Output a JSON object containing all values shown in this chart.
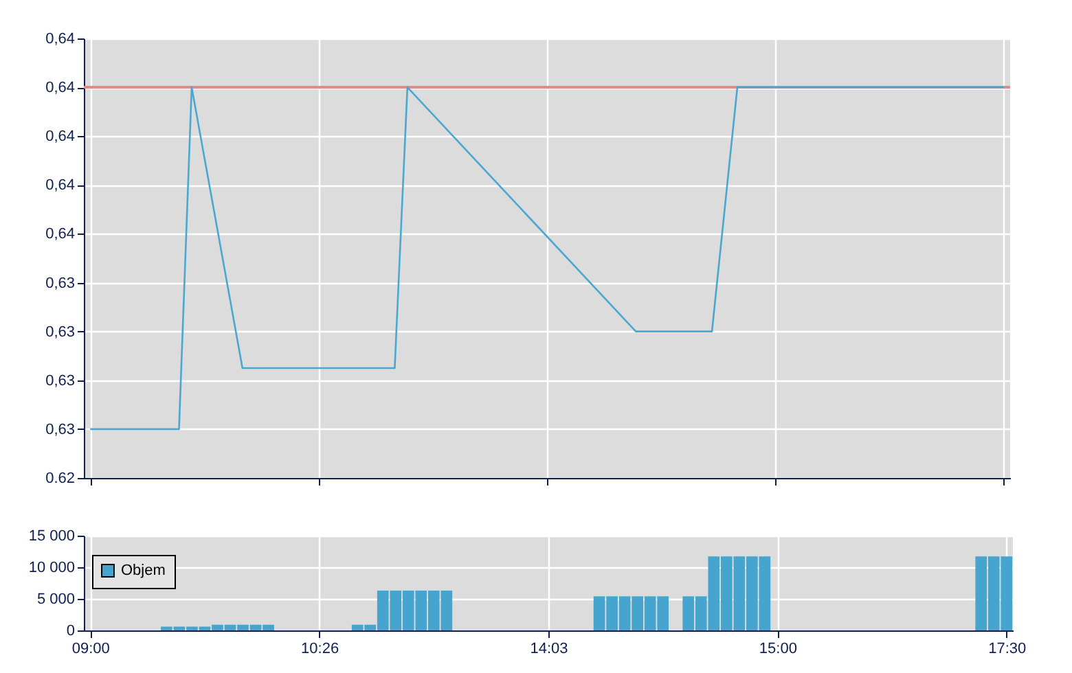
{
  "chart_data": [
    {
      "type": "line",
      "categories": [
        null,
        null,
        null,
        null,
        null,
        null,
        null,
        null,
        null,
        null,
        null,
        null,
        null,
        null,
        null,
        null,
        null,
        null,
        null,
        null,
        null,
        null,
        null,
        null,
        null,
        null,
        null,
        null,
        null,
        null,
        null,
        null,
        null,
        null,
        null,
        null,
        null,
        null,
        null,
        null,
        null,
        null,
        null,
        null,
        null,
        null,
        null,
        null,
        null,
        null,
        null,
        null,
        null,
        null,
        null,
        null,
        null,
        null,
        null,
        null,
        null,
        null,
        null,
        null,
        null,
        null,
        null,
        null,
        null,
        null,
        null,
        null,
        null
      ],
      "series": [
        {
          "color": "#4aa8d0",
          "values": [
            0.6256,
            null,
            null,
            null,
            null,
            null,
            null,
            0.6256,
            0.6424,
            null,
            null,
            null,
            0.6286,
            null,
            null,
            null,
            null,
            null,
            null,
            null,
            null,
            null,
            null,
            null,
            0.6286,
            0.6424,
            null,
            null,
            null,
            null,
            null,
            null,
            null,
            null,
            null,
            null,
            null,
            null,
            null,
            null,
            null,
            null,
            null,
            0.6304,
            null,
            null,
            null,
            null,
            null,
            0.6304,
            null,
            0.6424,
            null,
            null,
            null,
            null,
            null,
            null,
            null,
            null,
            null,
            null,
            null,
            null,
            null,
            null,
            null,
            null,
            null,
            null,
            null,
            null,
            0.6424
          ]
        }
      ],
      "ylim": [
        0.6232,
        0.6448
      ],
      "yticks": [
        {
          "value": 0.6232,
          "label": "0.62"
        },
        {
          "value": 0.6256,
          "label": "0,63"
        },
        {
          "value": 0.628,
          "label": "0,63"
        },
        {
          "value": 0.6304,
          "label": "0,63"
        },
        {
          "value": 0.6328,
          "label": "0,63"
        },
        {
          "value": 0.6352,
          "label": "0,64"
        },
        {
          "value": 0.6376,
          "label": "0,64"
        },
        {
          "value": 0.64,
          "label": "0,64"
        },
        {
          "value": 0.6424,
          "label": "0,64"
        },
        {
          "value": 0.6448,
          "label": "0,64"
        }
      ],
      "ref_lines": [
        {
          "axis": "y",
          "value": 0.6424,
          "color": "#e08a8a"
        }
      ],
      "grid": true,
      "tick_labels": "y"
    },
    {
      "type": "bar",
      "categories": [
        "09:00",
        null,
        null,
        null,
        null,
        null,
        null,
        null,
        null,
        null,
        null,
        null,
        null,
        null,
        null,
        null,
        null,
        null,
        "10:26",
        null,
        null,
        null,
        null,
        null,
        null,
        null,
        null,
        null,
        null,
        null,
        null,
        null,
        null,
        null,
        null,
        null,
        "14:03",
        null,
        null,
        null,
        null,
        null,
        null,
        null,
        null,
        null,
        null,
        null,
        null,
        null,
        null,
        null,
        null,
        null,
        "15:00",
        null,
        null,
        null,
        null,
        null,
        null,
        null,
        null,
        null,
        null,
        null,
        null,
        null,
        null,
        null,
        null,
        null,
        "17:30"
      ],
      "series": [
        {
          "name": "Objem",
          "color": "#46a5cf",
          "values": [
            null,
            null,
            null,
            null,
            null,
            null,
            600,
            600,
            600,
            600,
            900,
            900,
            900,
            900,
            900,
            null,
            null,
            null,
            null,
            null,
            null,
            900,
            900,
            6300,
            6300,
            6300,
            6300,
            6300,
            6300,
            null,
            null,
            null,
            null,
            null,
            null,
            null,
            null,
            null,
            null,
            null,
            5400,
            5400,
            5400,
            5400,
            5400,
            5400,
            null,
            5400,
            5400,
            11700,
            11700,
            11700,
            11700,
            11700,
            null,
            null,
            null,
            null,
            null,
            null,
            null,
            null,
            null,
            null,
            null,
            null,
            null,
            null,
            null,
            null,
            11700,
            11700,
            11700
          ]
        }
      ],
      "ylim": [
        0,
        15000
      ],
      "yticks": [
        {
          "value": 0,
          "label": "0"
        },
        {
          "value": 5000,
          "label": "5 000"
        },
        {
          "value": 10000,
          "label": "10 000"
        },
        {
          "value": 15000,
          "label": "15 000"
        }
      ],
      "grid": true,
      "legend": "left"
    }
  ]
}
